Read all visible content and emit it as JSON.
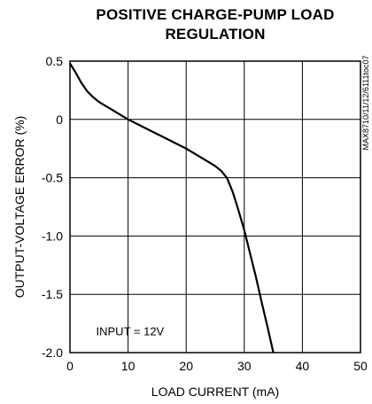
{
  "chart_data": {
    "type": "line",
    "title_line1": "POSITIVE CHARGE-PUMP LOAD",
    "title_line2": "REGULATION",
    "xlabel": "LOAD CURRENT (mA)",
    "ylabel": "OUTPUT-VOLTAGE ERROR (%)",
    "xlim": [
      0,
      50
    ],
    "ylim": [
      -2.0,
      0.5
    ],
    "x_ticks": [
      0,
      10,
      20,
      30,
      40,
      50
    ],
    "x_tick_labels": [
      "0",
      "10",
      "20",
      "30",
      "40",
      "50"
    ],
    "y_ticks": [
      0.5,
      0,
      -0.5,
      -1.0,
      -1.5,
      -2.0
    ],
    "y_tick_labels": [
      "0.5",
      "0",
      "-0.5",
      "-1.0",
      "-1.5",
      "-2.0"
    ],
    "grid": true,
    "annotation": "INPUT = 12V",
    "side_text": "MAX8710/11/12/6111toc07",
    "series": [
      {
        "color": "#000000",
        "x": [
          0,
          1,
          2,
          3,
          4,
          5,
          6,
          7,
          8,
          10,
          12,
          14,
          16,
          18,
          20,
          22,
          24,
          25,
          26,
          27,
          28,
          29,
          30,
          31,
          32,
          33,
          34,
          35
        ],
        "y": [
          0.48,
          0.4,
          0.31,
          0.24,
          0.19,
          0.15,
          0.12,
          0.09,
          0.06,
          0.0,
          -0.05,
          -0.1,
          -0.15,
          -0.2,
          -0.25,
          -0.31,
          -0.37,
          -0.4,
          -0.44,
          -0.5,
          -0.62,
          -0.78,
          -0.95,
          -1.15,
          -1.35,
          -1.57,
          -1.78,
          -2.0
        ]
      }
    ]
  }
}
